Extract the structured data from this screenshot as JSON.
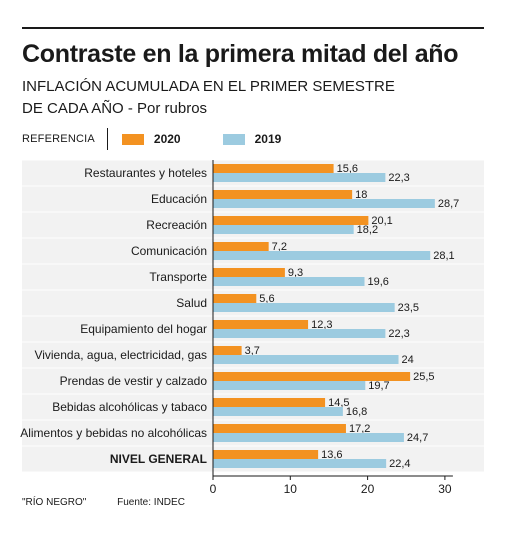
{
  "header": {
    "title": "Contraste en la primera mitad del año",
    "subtitle_line1": "INFLACIÓN ACUMULADA EN EL PRIMER SEMESTRE",
    "subtitle_line2": "DE CADA AÑO - Por rubros"
  },
  "legend": {
    "label": "REFERENCIA",
    "items": [
      {
        "name": "2020",
        "color": "#f39221"
      },
      {
        "name": "2019",
        "color": "#9ccbe0"
      }
    ]
  },
  "footer": {
    "source_brand": "\"RÍO NEGRO\"",
    "source": "Fuente: INDEC"
  },
  "chart_data": {
    "type": "bar",
    "orientation": "horizontal",
    "categories": [
      "Restaurantes y hoteles",
      "Educación",
      "Recreación",
      "Comunicación",
      "Transporte",
      "Salud",
      "Equipamiento del hogar",
      "Vivienda, agua, electricidad, gas",
      "Prendas de vestir y calzado",
      "Bebidas alcohólicas y tabaco",
      "Alimentos y bebidas no alcohólicas",
      "NIVEL GENERAL"
    ],
    "series": [
      {
        "name": "2020",
        "color": "#f39221",
        "values": [
          15.6,
          18,
          20.1,
          7.2,
          9.3,
          5.6,
          12.3,
          3.7,
          25.5,
          14.5,
          17.2,
          13.6
        ],
        "labels": [
          "15,6",
          "18",
          "20,1",
          "7,2",
          "9,3",
          "5,6",
          "12,3",
          "3,7",
          "25,5",
          "14,5",
          "17,2",
          "13,6"
        ]
      },
      {
        "name": "2019",
        "color": "#9ccbe0",
        "values": [
          22.3,
          28.7,
          18.2,
          28.1,
          19.6,
          23.5,
          22.3,
          24,
          19.7,
          16.8,
          24.7,
          22.4
        ],
        "labels": [
          "22,3",
          "28,7",
          "18,2",
          "28,1",
          "19,6",
          "23,5",
          "22,3",
          "24",
          "19,7",
          "16,8",
          "24,7",
          "22,4"
        ]
      }
    ],
    "xlim": [
      0,
      30
    ],
    "xticks": [
      0,
      10,
      20,
      30
    ],
    "grid": false,
    "row_background": "#f2f2f2",
    "legend_position": "top-left"
  }
}
